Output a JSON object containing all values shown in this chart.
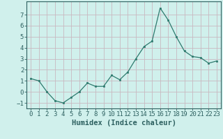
{
  "x": [
    0,
    1,
    2,
    3,
    4,
    5,
    6,
    7,
    8,
    9,
    10,
    11,
    12,
    13,
    14,
    15,
    16,
    17,
    18,
    19,
    20,
    21,
    22,
    23
  ],
  "y": [
    1.2,
    1.0,
    0.0,
    -0.8,
    -1.0,
    -0.5,
    0.0,
    0.8,
    0.5,
    0.5,
    1.5,
    1.1,
    1.8,
    3.0,
    4.1,
    4.6,
    7.6,
    6.5,
    5.0,
    3.7,
    3.2,
    3.1,
    2.6,
    2.8
  ],
  "xlabel": "Humidex (Indice chaleur)",
  "line_color": "#2d7a6e",
  "marker_color": "#2d7a6e",
  "background_color": "#d0f0ec",
  "grid_color": "#c8b8c0",
  "tick_color": "#2d6060",
  "label_color": "#2d6060",
  "ylim": [
    -1.5,
    8.2
  ],
  "xlim": [
    -0.5,
    23.5
  ],
  "yticks": [
    -1,
    0,
    1,
    2,
    3,
    4,
    5,
    6,
    7
  ],
  "xtick_labels": [
    "0",
    "1",
    "2",
    "3",
    "4",
    "5",
    "6",
    "7",
    "8",
    "9",
    "10",
    "11",
    "12",
    "13",
    "14",
    "15",
    "16",
    "17",
    "18",
    "19",
    "20",
    "21",
    "22",
    "23"
  ],
  "xlabel_fontsize": 7.5,
  "tick_fontsize": 6.5
}
